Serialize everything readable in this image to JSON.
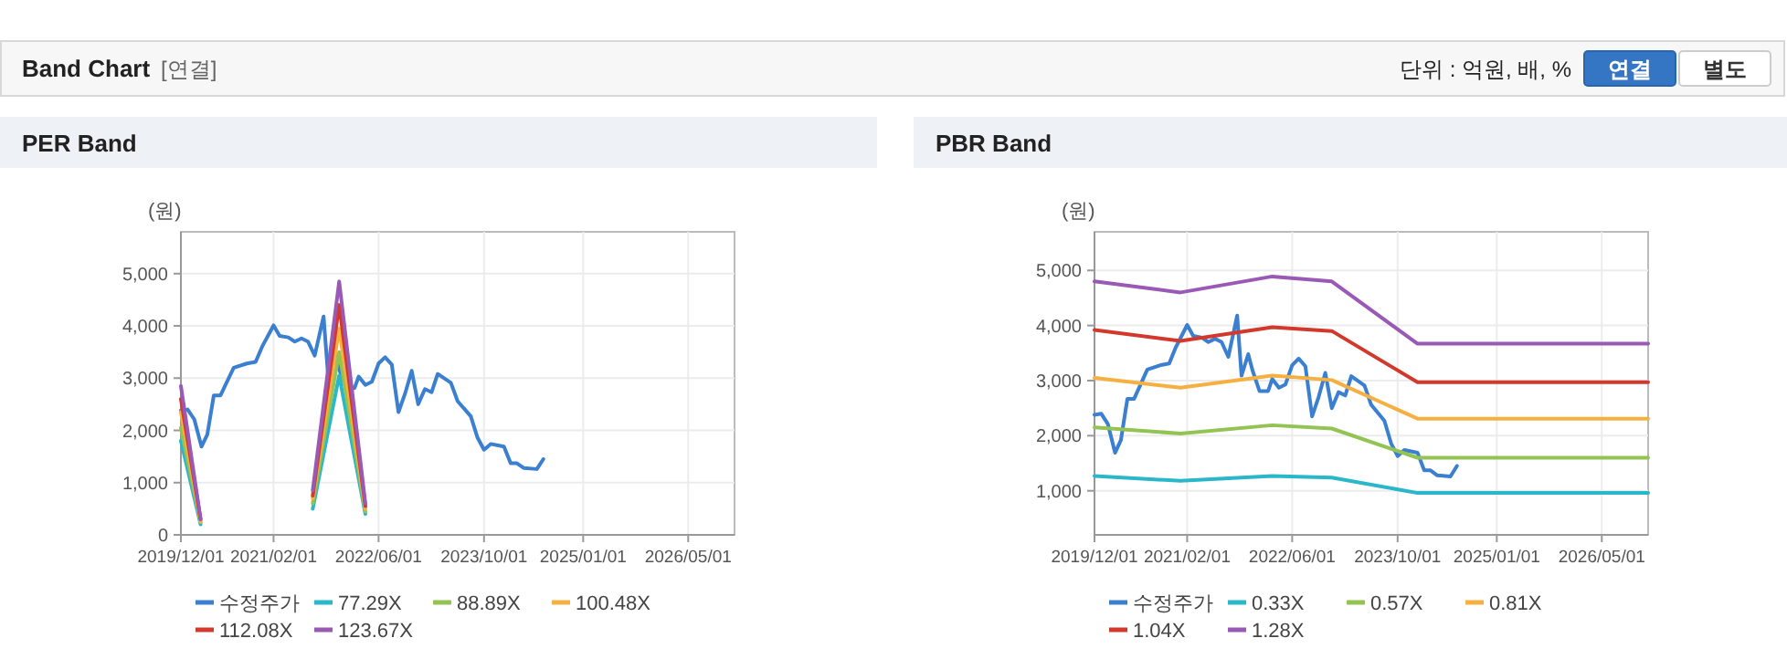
{
  "chart_data": [
    {
      "type": "line",
      "title": "PER Band",
      "ylabel": "(원)",
      "annotations": [
        "Band Chart",
        "[연결]",
        "단위 : 억원, 배, %",
        "연결",
        "별도"
      ],
      "xlim": [
        "2019-12-01",
        "2026-12-01"
      ],
      "ylim": [
        0,
        5800
      ],
      "xticks": [
        {
          "value": "2019-12-01",
          "label": "2019/12/01"
        },
        {
          "value": "2021-02-01",
          "label": "2021/02/01"
        },
        {
          "value": "2022-06-01",
          "label": "2022/06/01"
        },
        {
          "value": "2023-10-01",
          "label": "2023/10/01"
        },
        {
          "value": "2025-01-01",
          "label": "2025/01/01"
        },
        {
          "value": "2026-05-01",
          "label": "2026/05/01"
        }
      ],
      "yticks": [
        0,
        {
          "value": 1000,
          "label": "1,000"
        },
        {
          "value": 2000,
          "label": "2,000"
        },
        {
          "value": 3000,
          "label": "3,000"
        },
        {
          "value": 4000,
          "label": "4,000"
        },
        {
          "value": 5000,
          "label": "5,000"
        }
      ],
      "grid": true,
      "legend": "bottom",
      "marker": "none",
      "line_style": "solid",
      "series": [
        {
          "name": "수정주가",
          "color": "#3a7fd0",
          "x": [
            "2019-12-01",
            "2020-01-01",
            "2020-02-01",
            "2020-03-05",
            "2020-04-01",
            "2020-05-01",
            "2020-06-01",
            "2020-08-01",
            "2020-10-01",
            "2020-11-10",
            "2020-12-10",
            "2021-02-01",
            "2021-03-01",
            "2021-04-10",
            "2021-05-10",
            "2021-06-10",
            "2021-07-10",
            "2021-08-10",
            "2021-09-20",
            "2021-10-10",
            "2021-11-10",
            "2021-12-01",
            "2022-01-01",
            "2022-02-10",
            "2022-03-01",
            "2022-04-01",
            "2022-05-01",
            "2022-06-01",
            "2022-07-01",
            "2022-08-01",
            "2022-09-01",
            "2022-10-01",
            "2022-11-01",
            "2022-12-01",
            "2023-01-01",
            "2023-02-01",
            "2023-03-01",
            "2023-05-01",
            "2023-06-01",
            "2023-08-01",
            "2023-09-01",
            "2023-10-01",
            "2023-11-01",
            "2024-01-01",
            "2024-02-01",
            "2024-03-01",
            "2024-04-01",
            "2024-06-01",
            "2024-07-01"
          ],
          "values": [
            2380,
            2400,
            2210,
            1690,
            1920,
            2670,
            2670,
            3200,
            3280,
            3310,
            3600,
            4010,
            3810,
            3780,
            3700,
            3760,
            3700,
            3430,
            4180,
            3090,
            3480,
            3170,
            2810,
            2810,
            3030,
            2870,
            2930,
            3280,
            3400,
            3260,
            2350,
            2700,
            3140,
            2500,
            2790,
            2730,
            3080,
            2910,
            2560,
            2270,
            1860,
            1630,
            1740,
            1690,
            1370,
            1370,
            1280,
            1260,
            1450
          ]
        },
        {
          "name": "77.29X",
          "color": "#2ab7c9",
          "x": [
            "2019-12-01",
            "2020-03-01"
          ],
          "values": [
            1800,
            200
          ]
        },
        {
          "name": "88.89X",
          "color": "#93c353",
          "x": [
            "2019-12-01",
            "2020-03-01"
          ],
          "values": [
            2050,
            250
          ]
        },
        {
          "name": "100.48X",
          "color": "#f5b041",
          "x": [
            "2019-12-01",
            "2020-03-01"
          ],
          "values": [
            2350,
            250
          ]
        },
        {
          "name": "112.08X",
          "color": "#d2392c",
          "x": [
            "2019-12-01",
            "2020-03-01"
          ],
          "values": [
            2600,
            300
          ]
        },
        {
          "name": "123.67X",
          "color": "#9b59b6",
          "x": [
            "2019-12-01",
            "2020-03-01"
          ],
          "values": [
            2850,
            300
          ]
        },
        {
          "color": "#2ab7c9",
          "x": [
            "2021-08-01",
            "2021-12-01",
            "2022-04-01"
          ],
          "values": [
            500,
            3050,
            400
          ]
        },
        {
          "color": "#93c353",
          "x": [
            "2021-08-01",
            "2021-12-01",
            "2022-04-01"
          ],
          "values": [
            600,
            3500,
            450
          ]
        },
        {
          "color": "#f5b041",
          "x": [
            "2021-08-01",
            "2021-12-01",
            "2022-04-01"
          ],
          "values": [
            700,
            3950,
            500
          ]
        },
        {
          "color": "#d2392c",
          "x": [
            "2021-08-01",
            "2021-12-01",
            "2022-04-01"
          ],
          "values": [
            750,
            4400,
            550
          ]
        },
        {
          "color": "#9b59b6",
          "x": [
            "2021-08-01",
            "2021-12-01",
            "2022-04-01"
          ],
          "values": [
            850,
            4850,
            600
          ]
        }
      ]
    },
    {
      "type": "line",
      "title": "PBR Band",
      "ylabel": "(원)",
      "xlim": [
        "2019-12-01",
        "2026-12-01"
      ],
      "ylim": [
        200,
        5700
      ],
      "xticks": [
        {
          "value": "2019-12-01",
          "label": "2019/12/01"
        },
        {
          "value": "2021-02-01",
          "label": "2021/02/01"
        },
        {
          "value": "2022-06-01",
          "label": "2022/06/01"
        },
        {
          "value": "2023-10-01",
          "label": "2023/10/01"
        },
        {
          "value": "2025-01-01",
          "label": "2025/01/01"
        },
        {
          "value": "2026-05-01",
          "label": "2026/05/01"
        }
      ],
      "yticks": [
        {
          "value": 1000,
          "label": "1,000"
        },
        {
          "value": 2000,
          "label": "2,000"
        },
        {
          "value": 3000,
          "label": "3,000"
        },
        {
          "value": 4000,
          "label": "4,000"
        },
        {
          "value": 5000,
          "label": "5,000"
        }
      ],
      "grid": true,
      "legend": "bottom",
      "marker": "none",
      "line_style": "solid",
      "series": [
        {
          "name": "수정주가",
          "color": "#3a7fd0",
          "x": [
            "2019-12-01",
            "2020-01-01",
            "2020-02-01",
            "2020-03-05",
            "2020-04-01",
            "2020-05-01",
            "2020-06-01",
            "2020-08-01",
            "2020-10-01",
            "2020-11-10",
            "2020-12-10",
            "2021-02-01",
            "2021-03-01",
            "2021-04-10",
            "2021-05-10",
            "2021-06-10",
            "2021-07-10",
            "2021-08-10",
            "2021-09-20",
            "2021-10-10",
            "2021-11-10",
            "2021-12-01",
            "2022-01-01",
            "2022-02-10",
            "2022-03-01",
            "2022-04-01",
            "2022-05-01",
            "2022-06-01",
            "2022-07-01",
            "2022-08-01",
            "2022-09-01",
            "2022-10-01",
            "2022-11-01",
            "2022-12-01",
            "2023-01-01",
            "2023-02-01",
            "2023-03-01",
            "2023-05-01",
            "2023-06-01",
            "2023-08-01",
            "2023-09-01",
            "2023-10-01",
            "2023-11-01",
            "2024-01-01",
            "2024-02-01",
            "2024-03-01",
            "2024-04-01",
            "2024-06-01",
            "2024-07-01"
          ],
          "values": [
            2380,
            2400,
            2210,
            1690,
            1920,
            2670,
            2670,
            3200,
            3280,
            3310,
            3600,
            4010,
            3810,
            3780,
            3700,
            3760,
            3700,
            3430,
            4180,
            3090,
            3480,
            3170,
            2810,
            2810,
            3030,
            2870,
            2930,
            3280,
            3400,
            3260,
            2350,
            2700,
            3140,
            2500,
            2790,
            2730,
            3080,
            2910,
            2560,
            2270,
            1860,
            1630,
            1740,
            1690,
            1370,
            1370,
            1280,
            1260,
            1450
          ]
        },
        {
          "name": "0.33X",
          "color": "#2ab7c9",
          "x": [
            "2019-12-01",
            "2021-01-01",
            "2022-03-01",
            "2022-12-01",
            "2024-01-01",
            "2026-12-01"
          ],
          "values": [
            1270,
            1180,
            1270,
            1240,
            960,
            960
          ]
        },
        {
          "name": "0.57X",
          "color": "#93c353",
          "x": [
            "2019-12-01",
            "2021-01-01",
            "2022-03-01",
            "2022-12-01",
            "2024-01-01",
            "2026-12-01"
          ],
          "values": [
            2150,
            2040,
            2190,
            2130,
            1600,
            1600
          ]
        },
        {
          "name": "0.81X",
          "color": "#f5b041",
          "x": [
            "2019-12-01",
            "2021-01-01",
            "2022-03-01",
            "2022-12-01",
            "2024-01-01",
            "2026-12-01"
          ],
          "values": [
            3050,
            2870,
            3090,
            3010,
            2310,
            2310
          ]
        },
        {
          "name": "1.04X",
          "color": "#d2392c",
          "x": [
            "2019-12-01",
            "2021-01-01",
            "2022-03-01",
            "2022-12-01",
            "2024-01-01",
            "2026-12-01"
          ],
          "values": [
            3920,
            3720,
            3970,
            3900,
            2970,
            2970
          ]
        },
        {
          "name": "1.28X",
          "color": "#9b59b6",
          "x": [
            "2019-12-01",
            "2021-01-01",
            "2022-03-01",
            "2022-12-01",
            "2024-01-01",
            "2026-12-01"
          ],
          "values": [
            4800,
            4600,
            4890,
            4800,
            3670,
            3670
          ]
        }
      ]
    }
  ]
}
